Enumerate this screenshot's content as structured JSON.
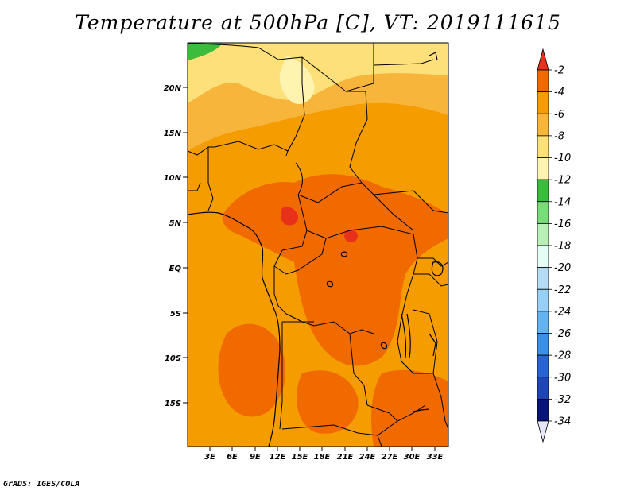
{
  "title": "Temperature at 500hPa [C], VT: 2019111615",
  "credit": "GrADS: IGES/COLA",
  "map": {
    "lat_labels": [
      "20N",
      "15N",
      "10N",
      "5N",
      "EQ",
      "5S",
      "10S",
      "15S"
    ],
    "lon_labels": [
      "3E",
      "6E",
      "9E",
      "12E",
      "15E",
      "18E",
      "21E",
      "24E",
      "27E",
      "30E",
      "33E"
    ]
  },
  "colorbar": {
    "labels": [
      "-2",
      "-4",
      "-6",
      "-8",
      "-10",
      "-12",
      "-14",
      "-16",
      "-18",
      "-20",
      "-22",
      "-24",
      "-26",
      "-28",
      "-30",
      "-32",
      "-34"
    ],
    "colors": [
      "#e8301a",
      "#f06a00",
      "#f49c00",
      "#f8b53c",
      "#fde07a",
      "#fff3b0",
      "#3cbc3c",
      "#78dc78",
      "#b8f0b8",
      "#e6fff6",
      "#b4dcf4",
      "#96d0f4",
      "#64b2ee",
      "#3c8fe6",
      "#2864d2",
      "#1e46b4",
      "#0a1478",
      "#e6e6fa"
    ]
  }
}
